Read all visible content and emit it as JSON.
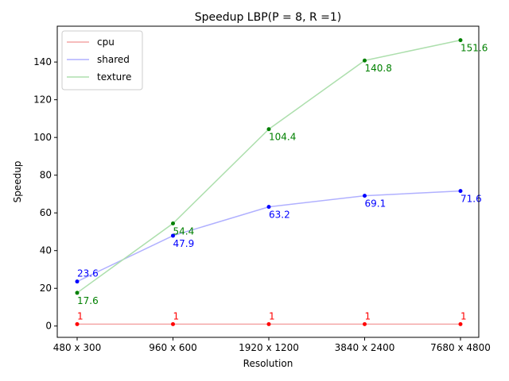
{
  "chart_data": {
    "type": "line",
    "title": "Speedup LBP(P = 8, R =1)",
    "xlabel": "Resolution",
    "ylabel": "Speedup",
    "categories": [
      "480 x 300",
      "960 x 600",
      "1920 x 1200",
      "3840 x 2400",
      "7680 x 4800"
    ],
    "ylim": [
      -6,
      159
    ],
    "yticks": [
      0,
      20,
      40,
      60,
      80,
      100,
      120,
      140
    ],
    "grid": false,
    "legend_position": "top-left",
    "series": [
      {
        "name": "cpu",
        "line_color": "#f4a6a6",
        "point_color": "#ff0000",
        "label_color": "#ff0000",
        "values": [
          1,
          1,
          1,
          1,
          1
        ],
        "labels": [
          "1",
          "1",
          "1",
          "1",
          "1"
        ]
      },
      {
        "name": "shared",
        "line_color": "#b0b0ff",
        "point_color": "#0000ff",
        "label_color": "#0000ff",
        "values": [
          23.6,
          47.9,
          63.2,
          69.1,
          71.6
        ],
        "labels": [
          "23.6",
          "47.9",
          "63.2",
          "69.1",
          "71.6"
        ]
      },
      {
        "name": "texture",
        "line_color": "#addfad",
        "point_color": "#008000",
        "label_color": "#008000",
        "values": [
          17.6,
          54.4,
          104.4,
          140.8,
          151.6
        ],
        "labels": [
          "17.6",
          "54.4",
          "104.4",
          "140.8",
          "151.6"
        ]
      }
    ]
  }
}
